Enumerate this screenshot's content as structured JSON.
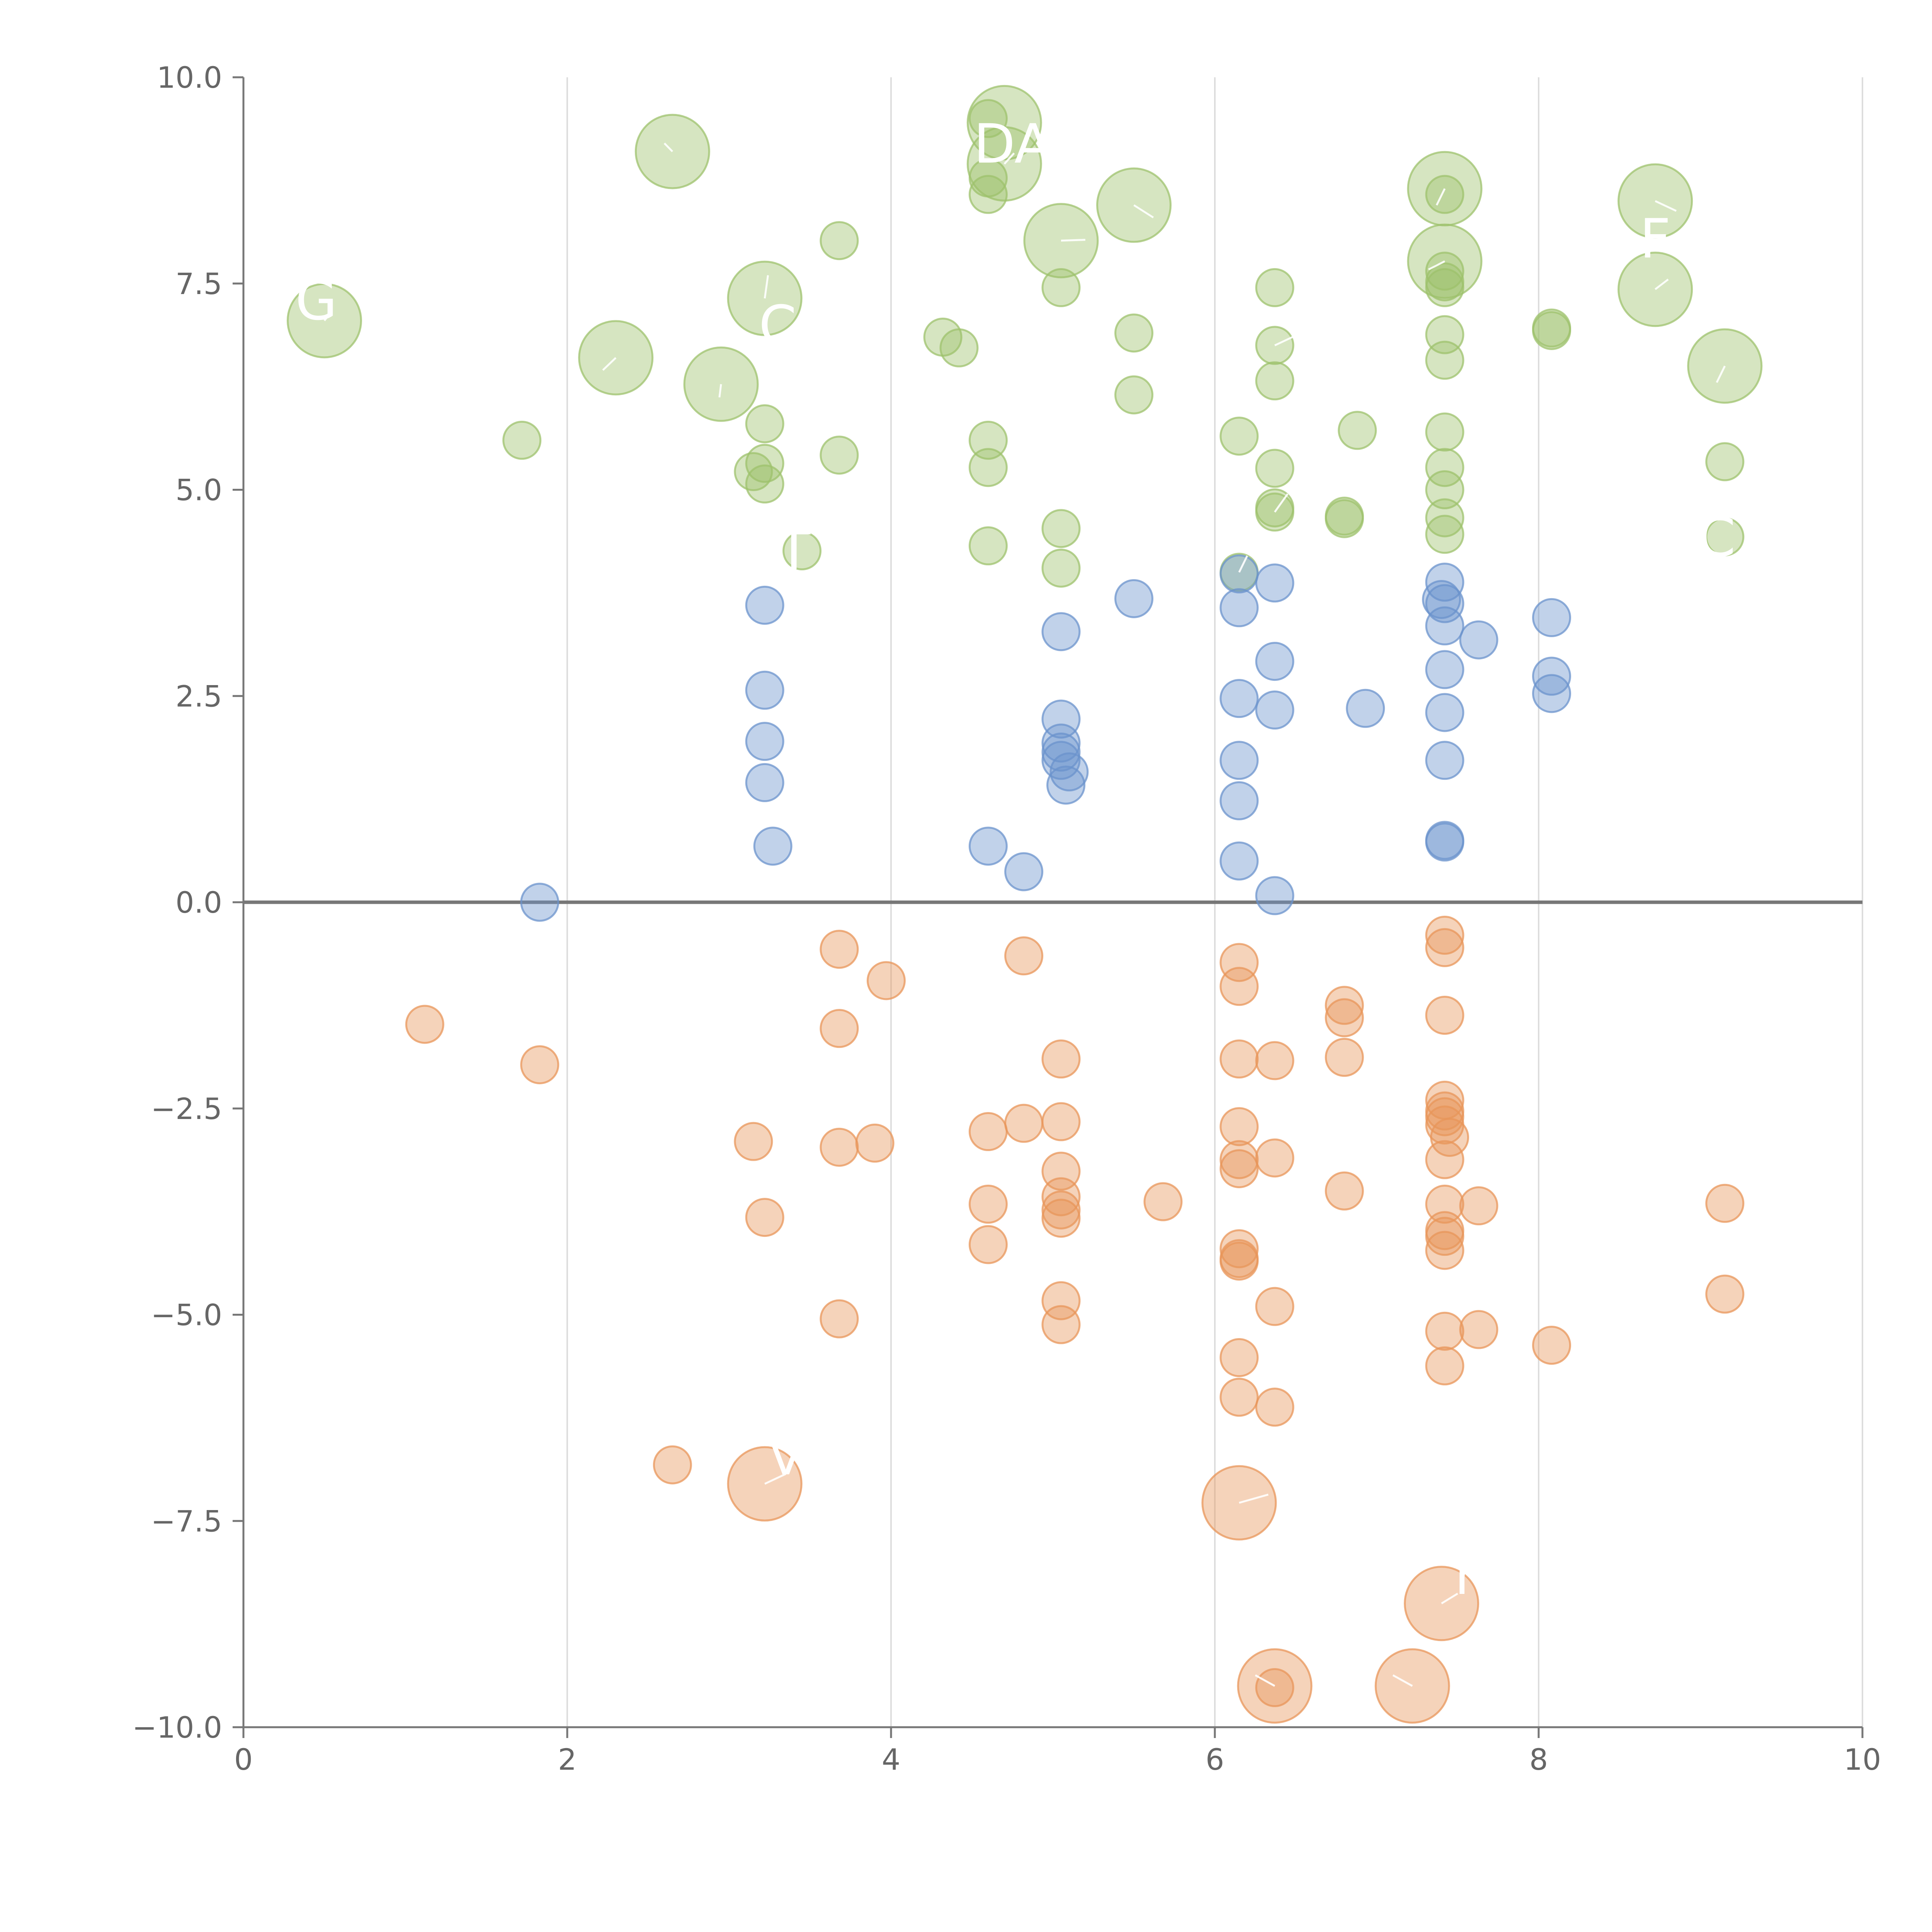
{
  "chart_data": {
    "type": "scatter",
    "title": "",
    "xlabel": "",
    "ylabel": "",
    "xlim": [
      0,
      10
    ],
    "ylim": [
      -10,
      10
    ],
    "grid": {
      "x": true,
      "y": false
    },
    "x_ticks": [
      0,
      2,
      4,
      6,
      8,
      10
    ],
    "x_tick_labels": [
      "0",
      "2",
      "4",
      "6",
      "8",
      "10"
    ],
    "y_ticks": [
      10,
      7.5,
      5,
      2.5,
      0,
      -2.5,
      -5,
      -7.5,
      -10
    ],
    "y_tick_labels": [
      "10.0",
      "7.5",
      "5.0",
      "2.5",
      "0.0",
      "−2.5",
      "−5.0",
      "−7.5",
      "−10.0"
    ],
    "zero_line": 0,
    "colors": {
      "green": "#9dc16c",
      "blue": "#6b93cc",
      "orange": "#e8955a"
    },
    "series": [
      {
        "name": "green",
        "color": "#9dc16c",
        "points": [
          [
            0.5,
            7.05,
            3
          ],
          [
            2.3,
            6.6,
            3
          ],
          [
            2.65,
            9.1,
            3
          ],
          [
            2.95,
            6.28,
            3
          ],
          [
            3.22,
            7.32,
            3
          ],
          [
            4.7,
            9.45,
            3
          ],
          [
            4.7,
            8.95,
            3
          ],
          [
            5.05,
            8.02,
            3
          ],
          [
            5.5,
            8.45,
            3
          ],
          [
            7.42,
            8.65,
            3
          ],
          [
            7.42,
            7.77,
            3
          ],
          [
            8.72,
            8.5,
            3
          ],
          [
            8.72,
            7.43,
            3
          ],
          [
            9.15,
            6.5,
            3
          ],
          [
            1.72,
            5.6,
            1
          ],
          [
            3.22,
            5.8,
            1
          ],
          [
            3.22,
            5.32,
            1
          ],
          [
            3.15,
            5.22,
            1
          ],
          [
            3.22,
            5.07,
            1
          ],
          [
            3.68,
            8.02,
            1
          ],
          [
            3.68,
            5.42,
            1
          ],
          [
            3.45,
            4.26,
            1
          ],
          [
            4.32,
            6.85,
            1
          ],
          [
            4.42,
            6.72,
            1
          ],
          [
            4.6,
            9.5,
            1
          ],
          [
            4.6,
            8.78,
            1
          ],
          [
            4.6,
            8.58,
            1
          ],
          [
            4.6,
            5.6,
            1
          ],
          [
            4.6,
            5.27,
            1
          ],
          [
            4.6,
            4.32,
            1
          ],
          [
            5.05,
            7.45,
            1
          ],
          [
            5.05,
            4.53,
            1
          ],
          [
            5.05,
            4.05,
            1
          ],
          [
            5.5,
            6.9,
            1
          ],
          [
            5.5,
            6.15,
            1
          ],
          [
            6.15,
            5.65,
            1
          ],
          [
            6.15,
            4.0,
            1
          ],
          [
            6.37,
            7.45,
            1
          ],
          [
            6.37,
            6.75,
            1
          ],
          [
            6.37,
            6.32,
            1
          ],
          [
            6.37,
            5.26,
            1
          ],
          [
            6.37,
            4.78,
            1
          ],
          [
            6.37,
            4.73,
            1
          ],
          [
            6.8,
            4.68,
            1
          ],
          [
            6.8,
            4.65,
            1
          ],
          [
            6.88,
            5.72,
            1
          ],
          [
            7.42,
            8.58,
            1
          ],
          [
            7.42,
            7.65,
            1
          ],
          [
            7.42,
            7.52,
            1
          ],
          [
            7.42,
            7.45,
            1
          ],
          [
            7.42,
            6.88,
            1
          ],
          [
            7.42,
            6.57,
            1
          ],
          [
            7.42,
            5.7,
            1
          ],
          [
            7.42,
            5.27,
            1
          ],
          [
            7.42,
            5.0,
            1
          ],
          [
            7.42,
            4.66,
            1
          ],
          [
            7.42,
            4.46,
            1
          ],
          [
            8.08,
            6.96,
            1
          ],
          [
            8.08,
            6.93,
            1
          ],
          [
            9.15,
            5.34,
            1
          ],
          [
            9.15,
            4.43,
            1
          ]
        ]
      },
      {
        "name": "blue",
        "color": "#6b93cc",
        "points": [
          [
            1.83,
            0.0,
            1
          ],
          [
            3.22,
            3.6,
            1
          ],
          [
            3.22,
            2.57,
            1
          ],
          [
            3.22,
            1.95,
            1
          ],
          [
            3.22,
            1.45,
            1
          ],
          [
            3.27,
            0.68,
            1
          ],
          [
            4.6,
            0.68,
            1
          ],
          [
            4.82,
            0.37,
            1
          ],
          [
            5.05,
            3.28,
            1
          ],
          [
            5.05,
            2.22,
            1
          ],
          [
            5.05,
            1.93,
            1
          ],
          [
            5.05,
            1.82,
            1
          ],
          [
            5.05,
            1.72,
            1
          ],
          [
            5.1,
            1.58,
            1
          ],
          [
            5.08,
            1.42,
            1
          ],
          [
            5.5,
            3.68,
            1
          ],
          [
            6.15,
            3.98,
            1
          ],
          [
            6.15,
            3.57,
            1
          ],
          [
            6.15,
            2.47,
            1
          ],
          [
            6.15,
            1.72,
            1
          ],
          [
            6.15,
            1.23,
            1
          ],
          [
            6.15,
            0.5,
            1
          ],
          [
            6.37,
            3.87,
            1
          ],
          [
            6.37,
            2.92,
            1
          ],
          [
            6.37,
            2.33,
            1
          ],
          [
            6.37,
            0.08,
            1
          ],
          [
            6.93,
            2.35,
            1
          ],
          [
            7.42,
            3.88,
            1
          ],
          [
            7.4,
            3.67,
            1
          ],
          [
            7.42,
            3.62,
            1
          ],
          [
            7.42,
            3.35,
            1
          ],
          [
            7.42,
            2.82,
            1
          ],
          [
            7.42,
            2.3,
            1
          ],
          [
            7.42,
            1.72,
            1
          ],
          [
            7.42,
            0.75,
            1
          ],
          [
            7.42,
            0.73,
            1
          ],
          [
            7.63,
            3.18,
            1
          ],
          [
            8.08,
            3.45,
            1
          ],
          [
            8.08,
            2.74,
            1
          ],
          [
            8.08,
            2.53,
            1
          ]
        ]
      },
      {
        "name": "orange",
        "color": "#e8955a",
        "points": [
          [
            1.12,
            -1.48,
            1
          ],
          [
            1.83,
            -1.97,
            1
          ],
          [
            2.65,
            -6.82,
            1
          ],
          [
            3.15,
            -2.9,
            1
          ],
          [
            3.22,
            -3.82,
            1
          ],
          [
            3.22,
            -7.05,
            3
          ],
          [
            3.68,
            -0.57,
            1
          ],
          [
            3.68,
            -1.53,
            1
          ],
          [
            3.68,
            -2.97,
            1
          ],
          [
            3.68,
            -5.05,
            1
          ],
          [
            3.9,
            -2.92,
            1
          ],
          [
            3.97,
            -0.95,
            1
          ],
          [
            4.6,
            -2.78,
            1
          ],
          [
            4.6,
            -3.66,
            1
          ],
          [
            4.6,
            -4.15,
            1
          ],
          [
            4.82,
            -0.65,
            1
          ],
          [
            4.82,
            -2.68,
            1
          ],
          [
            5.05,
            -1.9,
            1
          ],
          [
            5.05,
            -2.66,
            1
          ],
          [
            5.05,
            -3.26,
            1
          ],
          [
            5.05,
            -3.57,
            1
          ],
          [
            5.05,
            -3.73,
            1
          ],
          [
            5.05,
            -3.83,
            1
          ],
          [
            5.05,
            -4.83,
            1
          ],
          [
            5.05,
            -5.12,
            1
          ],
          [
            5.68,
            -3.63,
            1
          ],
          [
            6.15,
            -0.73,
            1
          ],
          [
            6.15,
            -1.02,
            1
          ],
          [
            6.15,
            -1.9,
            1
          ],
          [
            6.15,
            -2.72,
            1
          ],
          [
            6.15,
            -3.12,
            1
          ],
          [
            6.15,
            -3.23,
            1
          ],
          [
            6.15,
            -4.2,
            1
          ],
          [
            6.15,
            -4.32,
            1
          ],
          [
            6.15,
            -4.35,
            1
          ],
          [
            6.15,
            -5.52,
            1
          ],
          [
            6.15,
            -6.0,
            1
          ],
          [
            6.15,
            -7.28,
            3
          ],
          [
            6.37,
            -1.92,
            1
          ],
          [
            6.37,
            -3.1,
            1
          ],
          [
            6.37,
            -4.9,
            1
          ],
          [
            6.37,
            -6.12,
            1
          ],
          [
            6.37,
            -9.5,
            3
          ],
          [
            6.37,
            -9.52,
            1
          ],
          [
            6.8,
            -1.25,
            1
          ],
          [
            6.8,
            -1.4,
            1
          ],
          [
            6.8,
            -1.88,
            1
          ],
          [
            6.8,
            -3.5,
            1
          ],
          [
            7.22,
            -9.5,
            3
          ],
          [
            7.42,
            -0.4,
            1
          ],
          [
            7.42,
            -0.55,
            1
          ],
          [
            7.42,
            -1.37,
            1
          ],
          [
            7.42,
            -2.4,
            1
          ],
          [
            7.42,
            -2.53,
            1
          ],
          [
            7.42,
            -2.6,
            1
          ],
          [
            7.42,
            -2.7,
            1
          ],
          [
            7.45,
            -2.85,
            1
          ],
          [
            7.42,
            -3.12,
            1
          ],
          [
            7.42,
            -3.66,
            1
          ],
          [
            7.42,
            -3.98,
            1
          ],
          [
            7.42,
            -4.05,
            1
          ],
          [
            7.42,
            -4.22,
            1
          ],
          [
            7.42,
            -5.2,
            1
          ],
          [
            7.42,
            -5.62,
            1
          ],
          [
            7.4,
            -8.5,
            3
          ],
          [
            7.63,
            -3.68,
            1
          ],
          [
            7.63,
            -5.18,
            1
          ],
          [
            8.08,
            -5.37,
            1
          ],
          [
            9.15,
            -3.65,
            1
          ],
          [
            9.15,
            -4.75,
            1
          ]
        ]
      }
    ],
    "annotations": [
      {
        "text": "DA",
        "x": 4.75,
        "y": 9.2,
        "tx": 4.75,
        "ty": 9.2,
        "px": 4.82,
        "py": 9.0
      },
      {
        "text": "C",
        "x": 3.3,
        "y": 7.0,
        "tx": 3.3,
        "ty": 7.0,
        "px": 3.22,
        "py": 7.32
      },
      {
        "text": "T",
        "x": 3.4,
        "y": 4.27,
        "tx": 3.4,
        "ty": 4.27,
        "px": 3.45,
        "py": 4.26
      },
      {
        "text": "G",
        "x": 0.45,
        "y": 7.3,
        "tx": 0.45,
        "ty": 7.3,
        "px": 0.5,
        "py": 7.05
      },
      {
        "text": "F",
        "x": 8.72,
        "y": 8.05,
        "tx": 8.72,
        "ty": 8.05,
        "px": 8.72,
        "py": 7.43
      },
      {
        "text": "C",
        "x": 9.1,
        "y": 4.43,
        "tx": 9.1,
        "ty": 4.43,
        "px": 9.15,
        "py": 4.43
      },
      {
        "text": "“",
        "x": 6.9,
        "y": 5.9,
        "tx": 6.9,
        "ty": 5.9,
        "px": 6.88,
        "py": 5.72
      },
      {
        "text": "v",
        "x": 3.35,
        "y": -6.7,
        "tx": 3.35,
        "ty": -6.7,
        "px": 3.22,
        "py": -7.05
      },
      {
        "text": "r",
        "x": 7.55,
        "y": -8.15,
        "tx": 7.55,
        "ty": -8.15,
        "px": 7.4,
        "py": -8.5
      }
    ],
    "leader_lines": [
      [
        2.65,
        9.1,
        2.6,
        9.2
      ],
      [
        2.3,
        6.6,
        2.22,
        6.45
      ],
      [
        2.95,
        6.28,
        2.94,
        6.12
      ],
      [
        3.22,
        7.32,
        3.24,
        7.6
      ],
      [
        5.05,
        8.02,
        5.2,
        8.03
      ],
      [
        5.5,
        8.45,
        5.62,
        8.3
      ],
      [
        4.7,
        8.95,
        4.76,
        9.08
      ],
      [
        7.42,
        8.65,
        7.37,
        8.45
      ],
      [
        7.42,
        7.77,
        7.32,
        7.67
      ],
      [
        8.72,
        8.5,
        8.85,
        8.38
      ],
      [
        8.72,
        7.43,
        8.8,
        7.55
      ],
      [
        9.15,
        6.5,
        9.1,
        6.3
      ],
      [
        0.5,
        7.05,
        0.54,
        7.15
      ],
      [
        6.37,
        6.75,
        6.5,
        6.87
      ],
      [
        6.37,
        4.73,
        6.45,
        4.95
      ],
      [
        6.15,
        4.0,
        6.2,
        4.2
      ],
      [
        3.22,
        -7.05,
        3.35,
        -6.93
      ],
      [
        6.15,
        -7.28,
        6.33,
        -7.18
      ],
      [
        6.37,
        -9.5,
        6.25,
        -9.37
      ],
      [
        7.22,
        -9.5,
        7.1,
        -9.37
      ],
      [
        7.4,
        -8.5,
        7.5,
        -8.38
      ]
    ]
  }
}
